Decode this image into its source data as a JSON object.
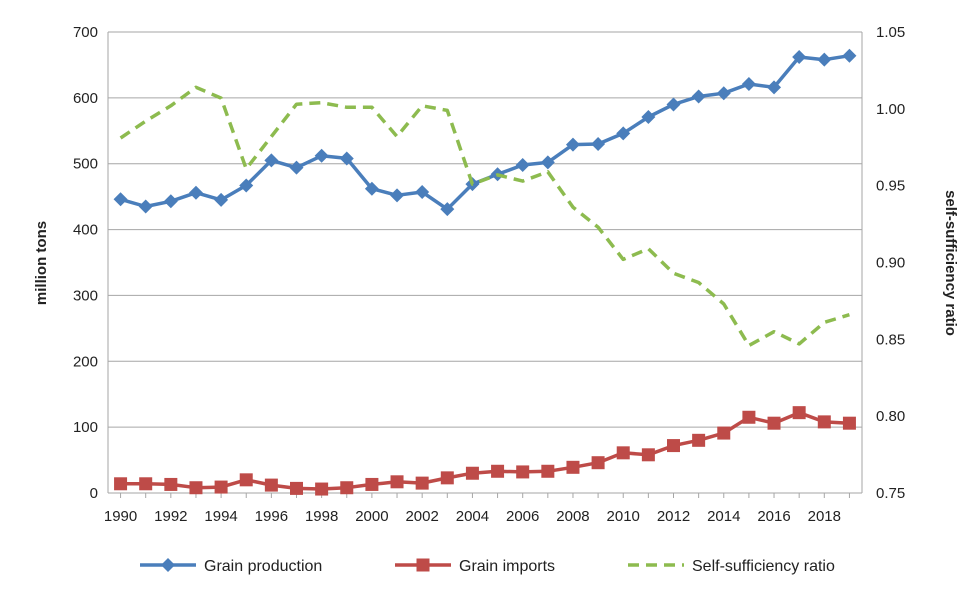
{
  "chart_data": {
    "type": "line",
    "title": "",
    "xlabel": "",
    "ylabel": "million tons",
    "y2label": "self-sufficiency ratio",
    "x": [
      1990,
      1991,
      1992,
      1993,
      1994,
      1995,
      1996,
      1997,
      1998,
      1999,
      2000,
      2001,
      2002,
      2003,
      2004,
      2005,
      2006,
      2007,
      2008,
      2009,
      2010,
      2011,
      2012,
      2013,
      2014,
      2015,
      2016,
      2017,
      2018,
      2019
    ],
    "x_tick_labels": [
      "1990",
      "1992",
      "1994",
      "1996",
      "1998",
      "2000",
      "2002",
      "2004",
      "2006",
      "2008",
      "2010",
      "2012",
      "2014",
      "2016",
      "2018"
    ],
    "ylim": [
      0,
      700
    ],
    "y_ticks": [
      "0",
      "100",
      "200",
      "300",
      "400",
      "500",
      "600",
      "700"
    ],
    "y2lim": [
      0.75,
      1.05
    ],
    "y2_ticks": [
      "0.75",
      "0.80",
      "0.85",
      "0.90",
      "0.95",
      "1.00",
      "1.05"
    ],
    "grid": true,
    "legend_position": "bottom",
    "series": [
      {
        "name": "Grain production",
        "axis": "left",
        "color": "#4a7ebb",
        "marker": "diamond",
        "line_style": "solid",
        "values": [
          446,
          435,
          443,
          456,
          445,
          467,
          505,
          494,
          512,
          508,
          462,
          452,
          457,
          431,
          469,
          484,
          498,
          502,
          529,
          530,
          546,
          571,
          590,
          602,
          607,
          621,
          616,
          662,
          658,
          664
        ]
      },
      {
        "name": "Grain imports",
        "axis": "left",
        "color": "#be4b48",
        "marker": "square",
        "line_style": "solid",
        "values": [
          14,
          14,
          13,
          8,
          9,
          20,
          12,
          7,
          6,
          8,
          13,
          17,
          15,
          23,
          30,
          33,
          32,
          33,
          39,
          46,
          61,
          58,
          72,
          80,
          91,
          115,
          106,
          122,
          108,
          106
        ]
      },
      {
        "name": "Self-sufficiency ratio",
        "axis": "right",
        "color": "#8dbb4f",
        "marker": "none",
        "line_style": "dashed",
        "values": [
          0.981,
          0.992,
          1.002,
          1.014,
          1.007,
          0.961,
          0.982,
          1.003,
          1.004,
          1.001,
          1.001,
          0.982,
          1.002,
          0.999,
          0.951,
          0.957,
          0.953,
          0.959,
          0.936,
          0.923,
          0.902,
          0.909,
          0.893,
          0.887,
          0.873,
          0.846,
          0.855,
          0.847,
          0.861,
          0.866
        ]
      }
    ]
  }
}
